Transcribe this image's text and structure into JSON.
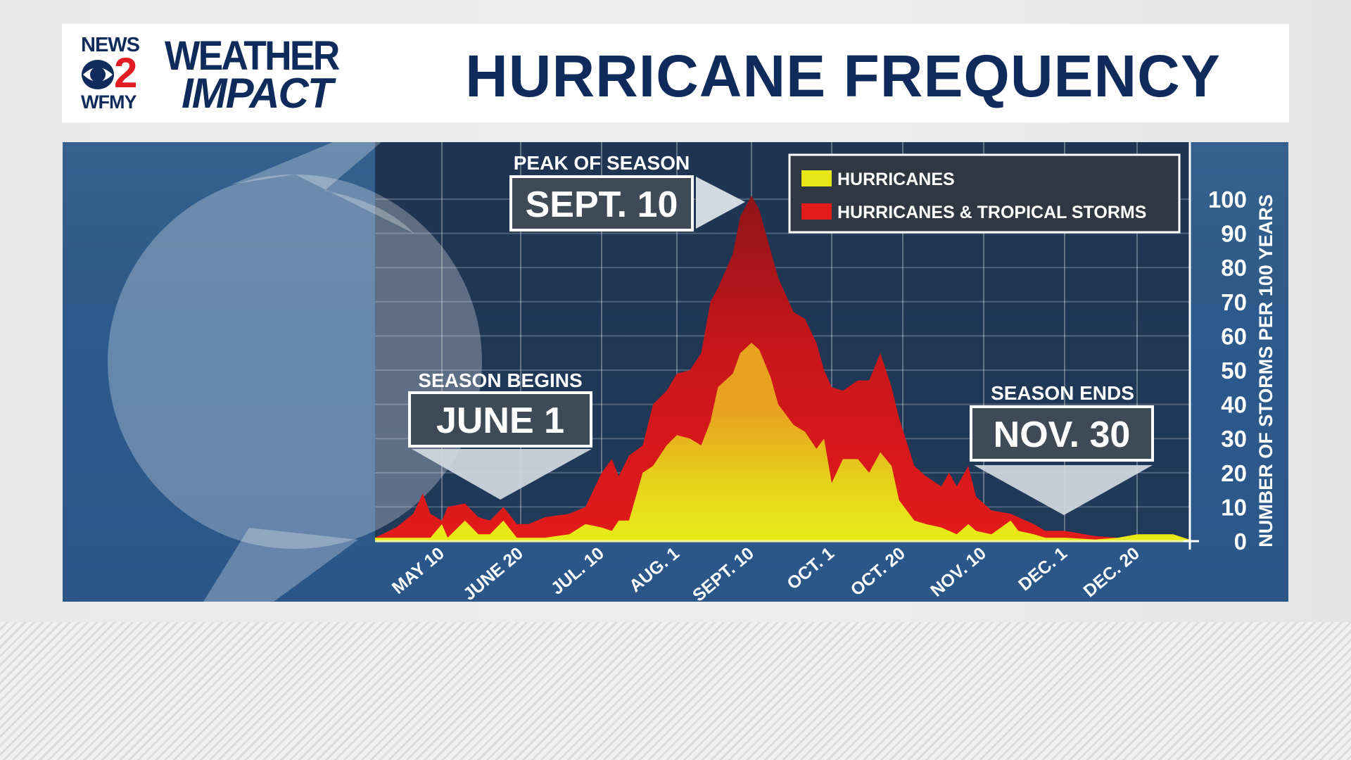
{
  "header": {
    "logo": {
      "news": "NEWS",
      "number": "2",
      "station": "WFMY",
      "weather": "WEATHER",
      "impact": "IMPACT"
    },
    "title": "HURRICANE FREQUENCY"
  },
  "colors": {
    "title": "#0f2b5b",
    "hurricanes": "#e6e619",
    "tropical": "#e31b1b",
    "plot_bg": "#1f3654"
  },
  "annotations": {
    "peak": {
      "caption": "PEAK OF SEASON",
      "date": "SEPT. 10"
    },
    "begin": {
      "caption": "SEASON BEGINS",
      "date": "JUNE 1"
    },
    "end": {
      "caption": "SEASON ENDS",
      "date": "NOV. 30"
    }
  },
  "chart_data": {
    "type": "area",
    "title": "HURRICANE FREQUENCY",
    "xlabel": "",
    "ylabel": "NUMBER OF STORMS PER 100 YEARS",
    "ylim": [
      0,
      100
    ],
    "y_ticks": [
      0,
      10,
      20,
      30,
      40,
      50,
      60,
      70,
      80,
      90,
      100
    ],
    "grid": true,
    "legend_position": "top-right",
    "x_unit": "day of year",
    "x_range": [
      95,
      367
    ],
    "x_ticks": [
      {
        "day": 130,
        "label": "MAY 10"
      },
      {
        "day": 171,
        "label": "JUNE 20"
      },
      {
        "day": 191,
        "label": "JUL. 10"
      },
      {
        "day": 213,
        "label": "AUG. 1"
      },
      {
        "day": 253,
        "label": "SEPT. 10"
      },
      {
        "day": 274,
        "label": "OCT. 1"
      },
      {
        "day": 293,
        "label": "OCT. 20"
      },
      {
        "day": 314,
        "label": "NOV. 10"
      },
      {
        "day": 335,
        "label": "DEC. 1"
      },
      {
        "day": 354,
        "label": "DEC. 20"
      }
    ],
    "x": [
      95,
      106,
      115,
      120,
      124,
      130,
      133,
      142,
      149,
      155,
      162,
      169,
      173,
      177,
      183,
      187,
      191,
      194,
      196,
      199,
      203,
      206,
      210,
      213,
      220,
      226,
      231,
      235,
      243,
      247,
      253,
      255,
      258,
      260,
      264,
      267,
      270,
      272,
      274,
      277,
      281,
      284,
      287,
      290,
      292,
      296,
      299,
      303,
      305,
      307,
      310,
      312,
      316,
      321,
      323,
      327,
      330,
      335,
      343,
      349,
      354,
      363,
      367
    ],
    "series": [
      {
        "name": "HURRICANES & TROPICAL STORMS",
        "color": "#e31b1b",
        "values": [
          1,
          4,
          8,
          14,
          8,
          6,
          10,
          11,
          7,
          6,
          10,
          5,
          5,
          7,
          8,
          10,
          20,
          24,
          19,
          25,
          28,
          40,
          44,
          49,
          50,
          55,
          70,
          74,
          84,
          95,
          101,
          97,
          85,
          77,
          67,
          65,
          58,
          50,
          45,
          44,
          47,
          47,
          55,
          45,
          36,
          22,
          19,
          16,
          20,
          16,
          22,
          13,
          9,
          8,
          7,
          5,
          3,
          3,
          1.5,
          1,
          2,
          2,
          0.5
        ]
      },
      {
        "name": "HURRICANES",
        "color": "#e6e619",
        "values": [
          1,
          1,
          1,
          1,
          1,
          5,
          1,
          6,
          2,
          2,
          6,
          1,
          1,
          1,
          2,
          5,
          4,
          3,
          6,
          6,
          20,
          22,
          28,
          31,
          30,
          28,
          35,
          45,
          49,
          55,
          58,
          56,
          48,
          40,
          34,
          32,
          27,
          30,
          17,
          24,
          24,
          20,
          26,
          22,
          12,
          6,
          5,
          4,
          3,
          2,
          5,
          3,
          2,
          6,
          3,
          2,
          1,
          1,
          0.5,
          1,
          2,
          2,
          0.5
        ]
      }
    ]
  }
}
